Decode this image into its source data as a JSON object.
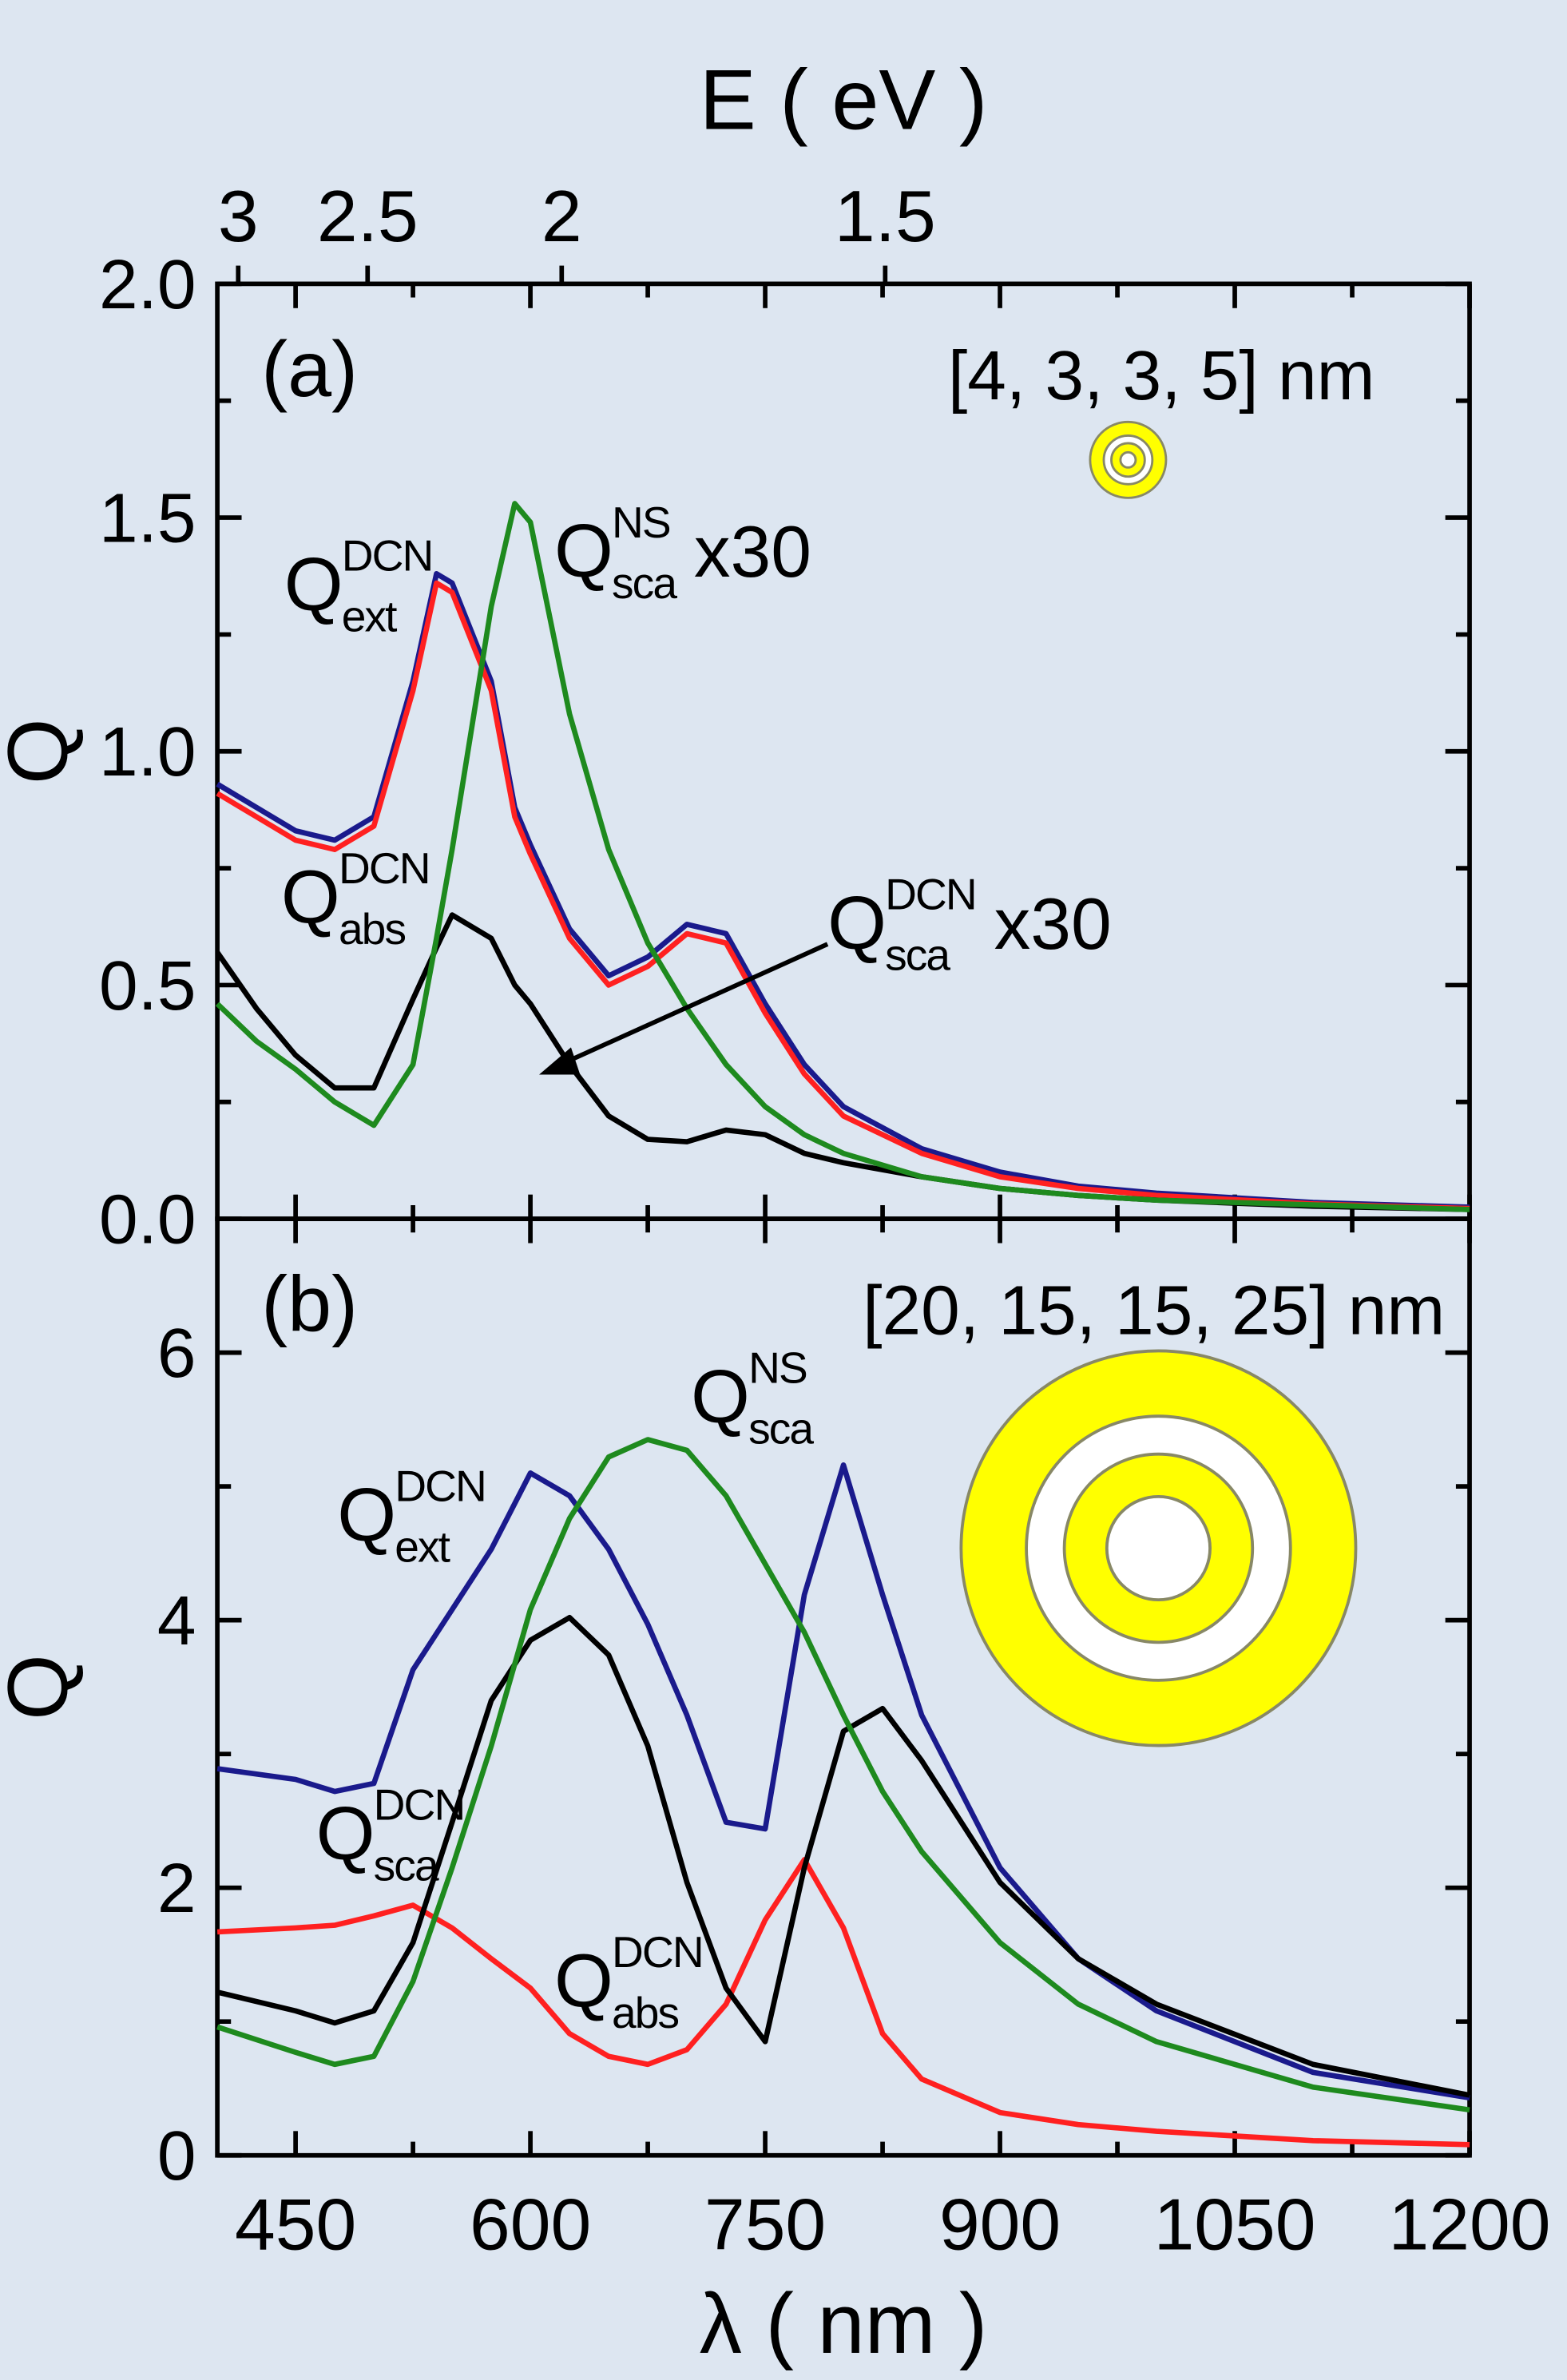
{
  "chart_data": [
    {
      "type": "line",
      "panel": "(a)",
      "annotation": "[4, 3, 3, 5] nm",
      "x2label": "E ( eV )",
      "ylabel": "Q",
      "x": [
        400,
        425,
        450,
        475,
        500,
        525,
        540,
        550,
        575,
        590,
        600,
        625,
        650,
        675,
        700,
        725,
        750,
        775,
        800,
        850,
        900,
        950,
        1000,
        1100,
        1200
      ],
      "xlim": [
        400,
        1200
      ],
      "xticks": [
        450,
        600,
        750,
        900,
        1050,
        1200
      ],
      "xticks_minor": [
        525,
        675,
        825,
        975,
        1125
      ],
      "x2ticks": [
        3,
        2.5,
        2,
        1.5
      ],
      "ylim": [
        0,
        2
      ],
      "yticks": [
        {
          "value": 0,
          "label": "0.0"
        },
        {
          "value": 0.5,
          "label": "0.5"
        },
        {
          "value": 1,
          "label": "1.0"
        },
        {
          "value": 1.5,
          "label": "1.5"
        },
        {
          "value": 2,
          "label": "2.0"
        }
      ],
      "yticks_minor": [
        0.25,
        0.75,
        1.25,
        1.75
      ],
      "series": [
        {
          "name": "Q",
          "sup": "DCN",
          "sub": "ext",
          "color": "#1a1a8c",
          "values": [
            0.93,
            0.88,
            0.83,
            0.81,
            0.86,
            1.15,
            1.38,
            1.36,
            1.15,
            0.88,
            0.8,
            0.62,
            0.52,
            0.56,
            0.63,
            0.61,
            0.46,
            0.33,
            0.24,
            0.15,
            0.1,
            0.07,
            0.055,
            0.035,
            0.025
          ]
        },
        {
          "name": "Q",
          "sup": "DCN",
          "sub": "abs",
          "color": "#ff2020",
          "values": [
            0.91,
            0.86,
            0.81,
            0.79,
            0.84,
            1.13,
            1.36,
            1.34,
            1.13,
            0.86,
            0.78,
            0.6,
            0.5,
            0.54,
            0.61,
            0.59,
            0.44,
            0.31,
            0.22,
            0.14,
            0.09,
            0.065,
            0.05,
            0.032,
            0.022
          ]
        },
        {
          "name": "Q",
          "sup": "DCN",
          "sub": "sca",
          "note": "x30",
          "color": "#000000",
          "values": [
            0.57,
            0.45,
            0.35,
            0.28,
            0.28,
            0.47,
            0.58,
            0.65,
            0.6,
            0.5,
            0.46,
            0.33,
            0.22,
            0.17,
            0.165,
            0.19,
            0.18,
            0.14,
            0.12,
            0.09,
            0.065,
            0.05,
            0.04,
            0.027,
            0.02
          ]
        },
        {
          "name": "Q",
          "sup": "NS",
          "sub": "sca",
          "note": "x30",
          "color": "#1e8a1e",
          "values": [
            0.46,
            0.38,
            0.32,
            0.25,
            0.2,
            0.33,
            0.6,
            0.79,
            1.31,
            1.53,
            1.49,
            1.08,
            0.79,
            0.59,
            0.45,
            0.33,
            0.24,
            0.18,
            0.14,
            0.09,
            0.065,
            0.05,
            0.04,
            0.03,
            0.02
          ]
        }
      ]
    },
    {
      "type": "line",
      "panel": "(b)",
      "annotation": "[20, 15, 15, 25] nm",
      "xlabel": "λ ( nm )",
      "ylabel": "Q",
      "x": [
        400,
        450,
        475,
        500,
        525,
        550,
        575,
        600,
        625,
        650,
        675,
        700,
        725,
        750,
        775,
        800,
        825,
        850,
        900,
        950,
        1000,
        1100,
        1200
      ],
      "xlim": [
        400,
        1200
      ],
      "xticks": [
        450,
        600,
        750,
        900,
        1050,
        1200
      ],
      "xticks_minor": [
        525,
        675,
        825,
        975,
        1125
      ],
      "ylim": [
        0,
        7
      ],
      "yticks": [
        0,
        2,
        4,
        6
      ],
      "yticks_minor": [
        1,
        3,
        5
      ],
      "series": [
        {
          "name": "Q",
          "sup": "DCN",
          "sub": "ext",
          "color": "#1a1a8c",
          "values": [
            2.89,
            2.81,
            2.72,
            2.78,
            3.63,
            4.08,
            4.53,
            5.1,
            4.93,
            4.53,
            3.97,
            3.29,
            2.49,
            2.44,
            4.19,
            5.16,
            4.19,
            3.29,
            2.15,
            1.47,
            1.08,
            0.62,
            0.43
          ]
        },
        {
          "name": "Q",
          "sup": "DCN",
          "sub": "abs",
          "color": "#ff2020",
          "values": [
            1.67,
            1.7,
            1.72,
            1.79,
            1.87,
            1.7,
            1.47,
            1.25,
            0.91,
            0.74,
            0.68,
            0.79,
            1.13,
            1.76,
            2.21,
            1.7,
            0.91,
            0.57,
            0.32,
            0.23,
            0.18,
            0.11,
            0.08
          ]
        },
        {
          "name": "Q",
          "sup": "DCN",
          "sub": "sca",
          "color": "#000000",
          "values": [
            1.22,
            1.08,
            0.99,
            1.08,
            1.59,
            2.49,
            3.4,
            3.85,
            4.02,
            3.74,
            3.06,
            2.04,
            1.25,
            0.85,
            2.15,
            3.17,
            3.34,
            2.95,
            2.04,
            1.47,
            1.13,
            0.68,
            0.45
          ]
        },
        {
          "name": "Q",
          "sup": "NS",
          "sub": "sca",
          "color": "#1e8a1e",
          "values": [
            0.96,
            0.77,
            0.68,
            0.74,
            1.3,
            2.15,
            3.06,
            4.08,
            4.76,
            5.22,
            5.35,
            5.27,
            4.93,
            4.42,
            3.91,
            3.29,
            2.72,
            2.27,
            1.59,
            1.13,
            0.85,
            0.51,
            0.34
          ]
        }
      ]
    }
  ]
}
